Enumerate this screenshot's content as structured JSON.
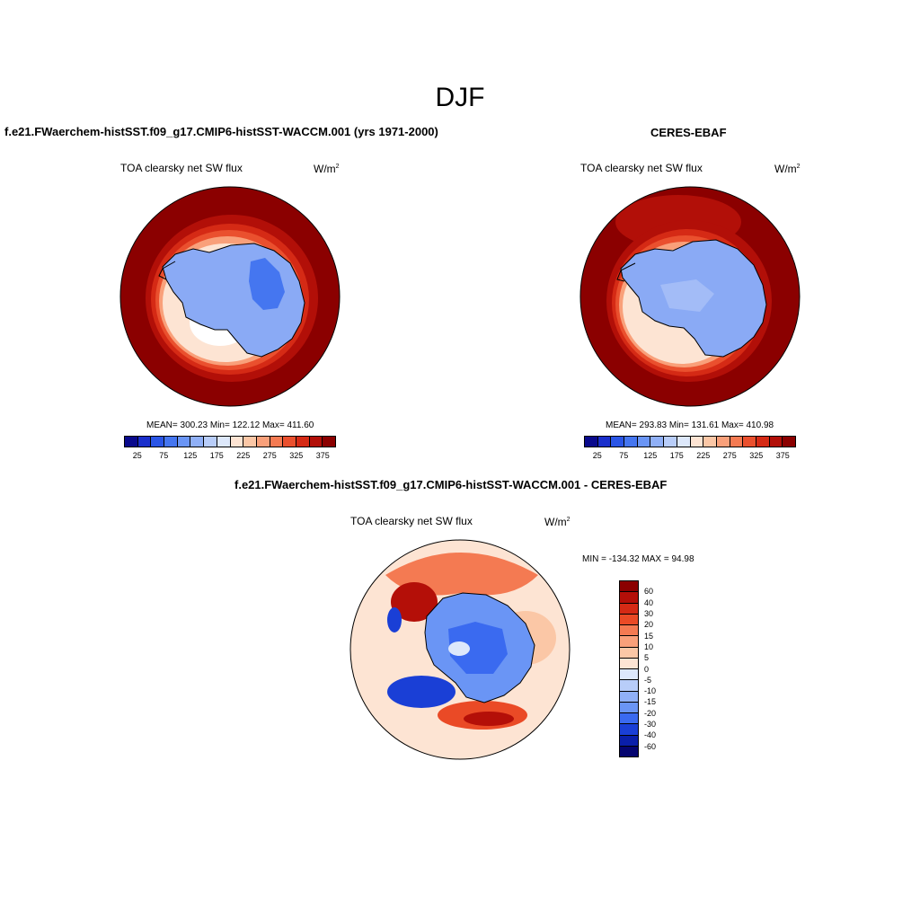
{
  "title": "DJF",
  "panel_left": {
    "title": "f.e21.FWaerchem-histSST.f09_g17.CMIP6-histSST-WACCM.001 (yrs 1971-2000)",
    "variable": "TOA clearsky net SW flux",
    "units_base": "W/m",
    "units_exp": "2",
    "stats": "MEAN= 300.23  Min= 122.12  Max= 411.60"
  },
  "panel_right": {
    "title": "CERES-EBAF",
    "variable": "TOA clearsky net SW flux",
    "units_base": "W/m",
    "units_exp": "2",
    "stats": "MEAN= 293.83  Min= 131.61  Max= 410.98"
  },
  "panel_diff": {
    "title": "f.e21.FWaerchem-histSST.f09_g17.CMIP6-histSST-WACCM.001 - CERES-EBAF",
    "variable": "TOA clearsky net SW flux",
    "units_base": "W/m",
    "units_exp": "2",
    "minmax": "MIN = -134.32 MAX =  94.98"
  },
  "chart_data": [
    {
      "type": "heatmap",
      "projection": "south polar stereographic",
      "title": "f.e21.FWaerchem-histSST.f09_g17.CMIP6-histSST-WACCM.001 (yrs 1971-2000)",
      "variable": "TOA clearsky net SW flux",
      "units": "W/m2",
      "mean": 300.23,
      "min": 122.12,
      "max": 411.6,
      "colorbar_ticks": [
        "25",
        "75",
        "125",
        "175",
        "225",
        "275",
        "325",
        "375"
      ],
      "levels": [
        25,
        50,
        75,
        100,
        125,
        150,
        175,
        200,
        225,
        250,
        275,
        300,
        325,
        350,
        375
      ]
    },
    {
      "type": "heatmap",
      "projection": "south polar stereographic",
      "title": "CERES-EBAF",
      "variable": "TOA clearsky net SW flux",
      "units": "W/m2",
      "mean": 293.83,
      "min": 131.61,
      "max": 410.98,
      "colorbar_ticks": [
        "25",
        "75",
        "125",
        "175",
        "225",
        "275",
        "325",
        "375"
      ],
      "levels": [
        25,
        50,
        75,
        100,
        125,
        150,
        175,
        200,
        225,
        250,
        275,
        300,
        325,
        350,
        375
      ]
    },
    {
      "type": "heatmap",
      "projection": "south polar stereographic",
      "title": "f.e21.FWaerchem-histSST.f09_g17.CMIP6-histSST-WACCM.001 - CERES-EBAF",
      "variable": "TOA clearsky net SW flux",
      "units": "W/m2",
      "min": -134.32,
      "max": 94.98,
      "colorbar_ticks": [
        "60",
        "40",
        "30",
        "20",
        "15",
        "10",
        "5",
        "0",
        "-5",
        "-10",
        "-15",
        "-20",
        "-30",
        "-40",
        "-60"
      ]
    }
  ],
  "colors": {
    "abs_scale": [
      "#0a0a8c",
      "#1a2fcc",
      "#2a55e6",
      "#4576f0",
      "#6a95f5",
      "#90b0f7",
      "#b8cdf9",
      "#dde8fb",
      "#fde4d3",
      "#fbc7a6",
      "#f9a07a",
      "#f47a52",
      "#ea502e",
      "#d52a15",
      "#b20f08",
      "#8b0000"
    ],
    "diff_scale": [
      "#8b0000",
      "#b40f08",
      "#d52a15",
      "#ea4a26",
      "#f47a52",
      "#f9a07a",
      "#fbc7a6",
      "#fde4d3",
      "#dde8fb",
      "#b8cdf9",
      "#90b0f7",
      "#6a95f5",
      "#3a6af0",
      "#1a3fd6",
      "#0a1faa",
      "#050570"
    ],
    "ocean_dark": "#8b0000",
    "antarctica": "#8aaaf5"
  }
}
